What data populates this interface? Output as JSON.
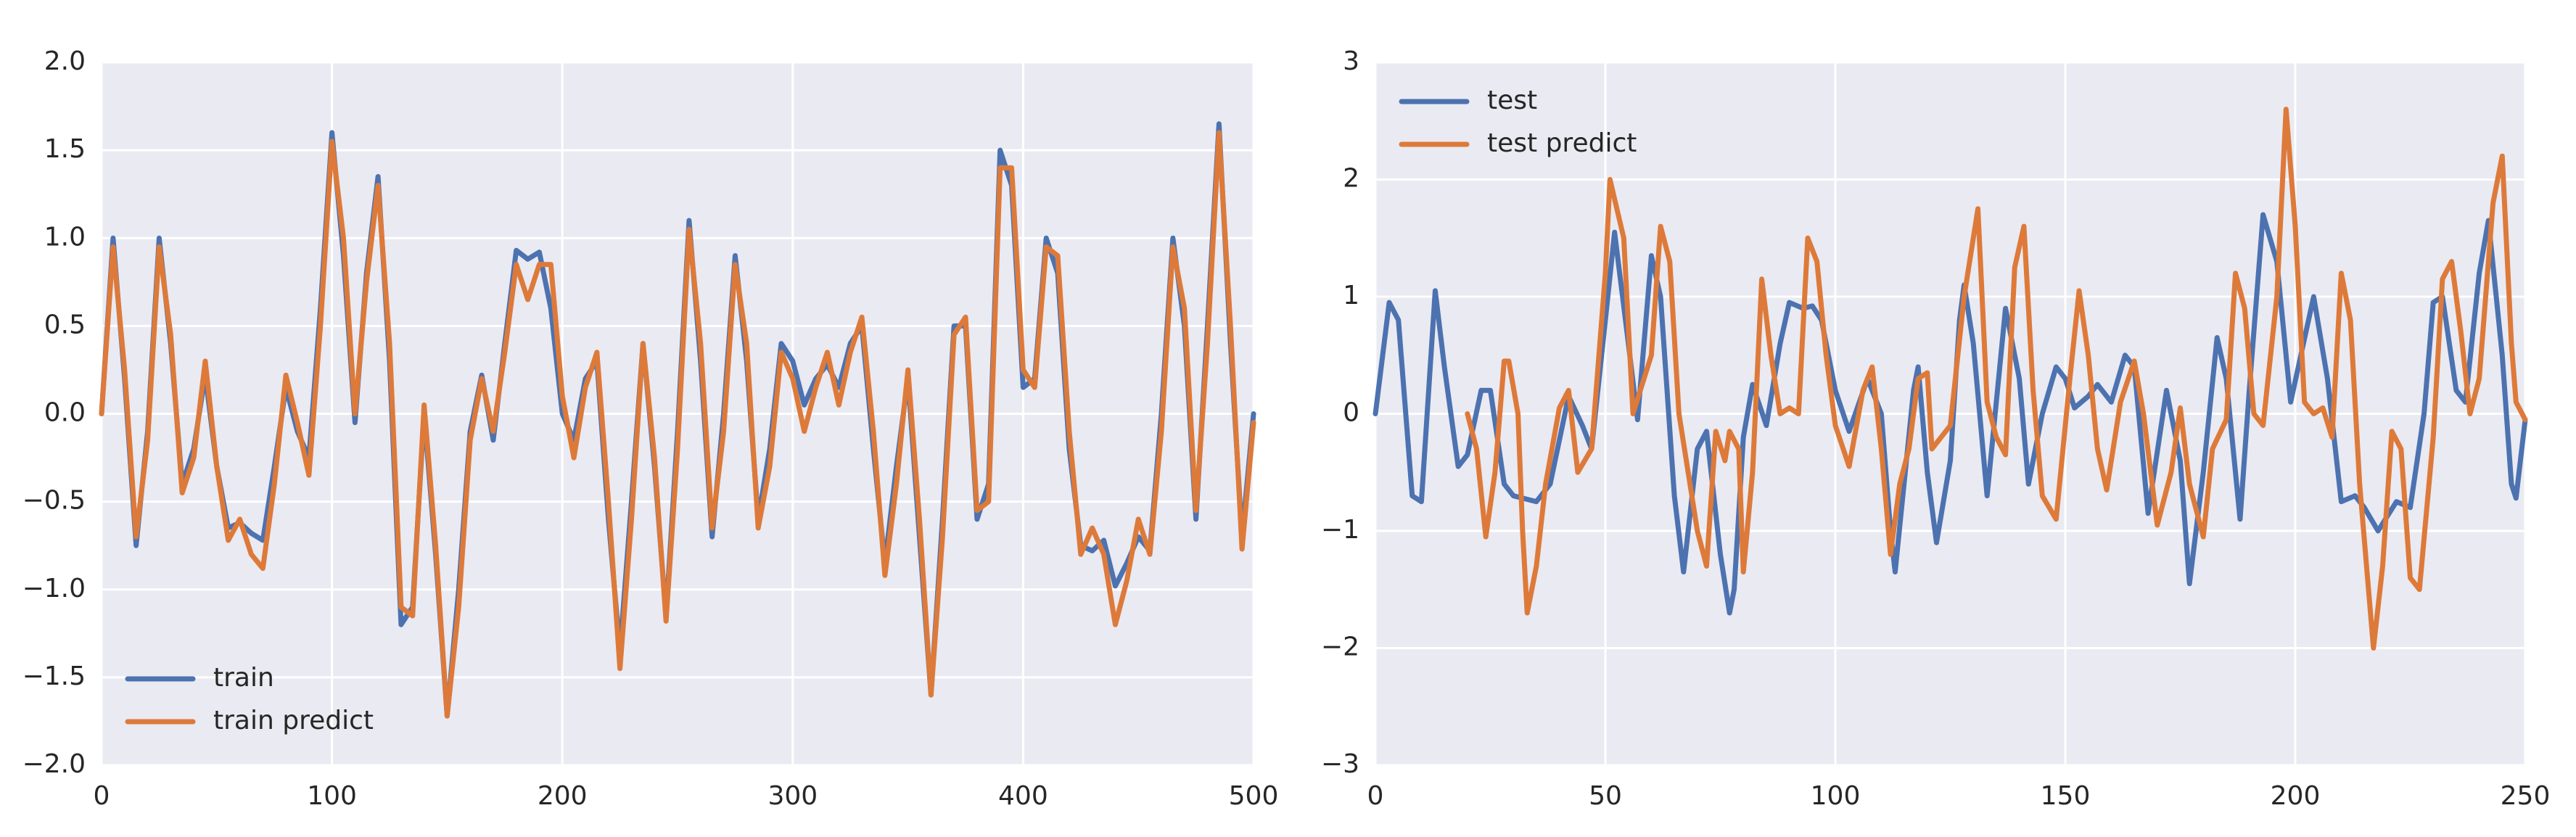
{
  "chart_data": [
    {
      "type": "line",
      "grid": true,
      "legend": "lower left",
      "xlim": [
        0,
        500
      ],
      "ylim": [
        -2,
        2
      ],
      "xticks": [
        0,
        100,
        200,
        300,
        400,
        500
      ],
      "yticks": [
        {
          "value": -2,
          "label": "−2.0"
        },
        {
          "value": -1.5,
          "label": "−1.5"
        },
        {
          "value": -1,
          "label": "−1.0"
        },
        {
          "value": -0.5,
          "label": "−0.5"
        },
        {
          "value": 0,
          "label": "0.0"
        },
        0.5,
        {
          "value": 1,
          "label": "1.0"
        },
        1.5,
        {
          "value": 2,
          "label": "2.0"
        }
      ],
      "series": [
        {
          "name": "train",
          "color": "#4c72b0",
          "x": [
            0,
            5,
            10,
            15,
            20,
            25,
            30,
            35,
            40,
            45,
            50,
            55,
            60,
            65,
            70,
            75,
            80,
            85,
            90,
            95,
            100,
            105,
            110,
            115,
            120,
            125,
            130,
            135,
            140,
            145,
            150,
            155,
            160,
            165,
            170,
            175,
            180,
            185,
            190,
            195,
            200,
            205,
            210,
            215,
            220,
            225,
            230,
            235,
            240,
            245,
            250,
            255,
            260,
            265,
            270,
            275,
            280,
            285,
            290,
            295,
            300,
            305,
            310,
            315,
            320,
            325,
            330,
            335,
            340,
            345,
            350,
            355,
            360,
            365,
            370,
            375,
            380,
            385,
            390,
            395,
            400,
            405,
            410,
            415,
            420,
            425,
            430,
            435,
            440,
            445,
            450,
            455,
            460,
            465,
            470,
            475,
            480,
            485,
            490,
            495,
            500
          ],
          "values": [
            0,
            1.0,
            0.2,
            -0.75,
            -0.1,
            1.0,
            0.4,
            -0.4,
            -0.2,
            0.22,
            -0.3,
            -0.65,
            -0.62,
            -0.68,
            -0.72,
            -0.3,
            0.15,
            -0.1,
            -0.25,
            0.6,
            1.6,
            0.9,
            -0.05,
            0.8,
            1.35,
            0.3,
            -1.2,
            -1.1,
            0.0,
            -0.8,
            -1.72,
            -1.0,
            -0.1,
            0.22,
            -0.15,
            0.4,
            0.93,
            0.88,
            0.92,
            0.6,
            0.0,
            -0.15,
            0.2,
            0.3,
            -0.6,
            -1.35,
            -0.5,
            0.4,
            -0.3,
            -1.15,
            -0.1,
            1.1,
            0.3,
            -0.7,
            0.0,
            0.9,
            0.3,
            -0.6,
            -0.2,
            0.4,
            0.3,
            0.05,
            0.2,
            0.28,
            0.15,
            0.4,
            0.5,
            -0.2,
            -0.85,
            -0.3,
            0.2,
            -0.7,
            -1.6,
            -0.6,
            0.5,
            0.5,
            -0.6,
            -0.4,
            1.5,
            1.3,
            0.15,
            0.2,
            1.0,
            0.8,
            -0.2,
            -0.75,
            -0.78,
            -0.72,
            -0.98,
            -0.85,
            -0.7,
            -0.78,
            0.0,
            1.0,
            0.5,
            -0.6,
            0.5,
            1.65,
            0.4,
            -0.7,
            0.0
          ]
        },
        {
          "name": "train predict",
          "color": "#dd7a3a",
          "x": [
            0,
            5,
            10,
            15,
            20,
            25,
            30,
            35,
            40,
            45,
            50,
            55,
            60,
            65,
            70,
            75,
            80,
            85,
            90,
            95,
            100,
            105,
            110,
            115,
            120,
            125,
            130,
            135,
            140,
            145,
            150,
            155,
            160,
            165,
            170,
            175,
            180,
            185,
            190,
            195,
            200,
            205,
            210,
            215,
            220,
            225,
            230,
            235,
            240,
            245,
            250,
            255,
            260,
            265,
            270,
            275,
            280,
            285,
            290,
            295,
            300,
            305,
            310,
            315,
            320,
            325,
            330,
            335,
            340,
            345,
            350,
            355,
            360,
            365,
            370,
            375,
            380,
            385,
            390,
            395,
            400,
            405,
            410,
            415,
            420,
            425,
            430,
            435,
            440,
            445,
            450,
            455,
            460,
            465,
            470,
            475,
            480,
            485,
            490,
            495,
            500
          ],
          "values": [
            0,
            0.95,
            0.25,
            -0.7,
            -0.15,
            0.95,
            0.45,
            -0.45,
            -0.25,
            0.3,
            -0.3,
            -0.72,
            -0.6,
            -0.8,
            -0.88,
            -0.4,
            0.22,
            -0.05,
            -0.35,
            0.5,
            1.55,
            1.0,
            0.0,
            0.75,
            1.3,
            0.4,
            -1.1,
            -1.15,
            0.05,
            -0.75,
            -1.72,
            -1.1,
            -0.15,
            0.2,
            -0.1,
            0.35,
            0.85,
            0.65,
            0.85,
            0.85,
            0.1,
            -0.25,
            0.15,
            0.35,
            -0.5,
            -1.45,
            -0.6,
            0.4,
            -0.25,
            -1.18,
            -0.2,
            1.05,
            0.4,
            -0.65,
            -0.1,
            0.85,
            0.4,
            -0.65,
            -0.3,
            0.35,
            0.2,
            -0.1,
            0.15,
            0.35,
            0.05,
            0.35,
            0.55,
            -0.1,
            -0.92,
            -0.4,
            0.25,
            -0.6,
            -1.6,
            -0.7,
            0.45,
            0.55,
            -0.55,
            -0.5,
            1.4,
            1.4,
            0.25,
            0.15,
            0.95,
            0.9,
            -0.1,
            -0.8,
            -0.65,
            -0.8,
            -1.2,
            -0.95,
            -0.6,
            -0.8,
            -0.1,
            0.95,
            0.6,
            -0.55,
            0.4,
            1.6,
            0.5,
            -0.77,
            -0.05
          ]
        }
      ]
    },
    {
      "type": "line",
      "grid": true,
      "legend": "upper left",
      "xlim": [
        0,
        250
      ],
      "ylim": [
        -3,
        3
      ],
      "xticks": [
        0,
        50,
        100,
        150,
        200,
        250
      ],
      "yticks": [
        {
          "value": -3,
          "label": "−3"
        },
        {
          "value": -2,
          "label": "−2"
        },
        {
          "value": -1,
          "label": "−1"
        },
        0,
        1,
        2,
        3
      ],
      "series": [
        {
          "name": "test",
          "color": "#4c72b0",
          "x": [
            0,
            3,
            5,
            8,
            10,
            13,
            15,
            18,
            20,
            23,
            25,
            28,
            30,
            35,
            38,
            42,
            45,
            47,
            50,
            52,
            55,
            57,
            60,
            62,
            65,
            67,
            70,
            72,
            75,
            77,
            78,
            80,
            82,
            85,
            88,
            90,
            93,
            95,
            97,
            100,
            103,
            107,
            110,
            112,
            113,
            117,
            118,
            120,
            122,
            125,
            127,
            128,
            130,
            133,
            137,
            140,
            142,
            145,
            148,
            150,
            152,
            155,
            157,
            160,
            163,
            165,
            168,
            172,
            175,
            177,
            180,
            183,
            185,
            188,
            190,
            193,
            196,
            199,
            204,
            207,
            210,
            213,
            215,
            218,
            222,
            225,
            228,
            230,
            232,
            235,
            237,
            240,
            242,
            245,
            247,
            248,
            250
          ],
          "values": [
            0,
            0.95,
            0.8,
            -0.7,
            -0.75,
            1.05,
            0.4,
            -0.45,
            -0.35,
            0.2,
            0.2,
            -0.6,
            -0.7,
            -0.75,
            -0.6,
            0.15,
            -0.1,
            -0.3,
            0.8,
            1.55,
            0.6,
            -0.05,
            1.35,
            1.0,
            -0.7,
            -1.35,
            -0.3,
            -0.15,
            -1.2,
            -1.7,
            -1.5,
            -0.2,
            0.25,
            -0.1,
            0.6,
            0.95,
            0.9,
            0.92,
            0.8,
            0.2,
            -0.15,
            0.3,
            0.0,
            -1.0,
            -1.35,
            0.2,
            0.4,
            -0.5,
            -1.1,
            -0.4,
            0.8,
            1.1,
            0.6,
            -0.7,
            0.9,
            0.3,
            -0.6,
            0.0,
            0.4,
            0.3,
            0.05,
            0.15,
            0.25,
            0.1,
            0.5,
            0.4,
            -0.85,
            0.2,
            -0.4,
            -1.45,
            -0.5,
            0.65,
            0.3,
            -0.9,
            0.2,
            1.7,
            1.3,
            0.1,
            1.0,
            0.3,
            -0.75,
            -0.7,
            -0.8,
            -1.0,
            -0.75,
            -0.8,
            0.0,
            0.95,
            1.0,
            0.2,
            0.1,
            1.2,
            1.65,
            0.5,
            -0.6,
            -0.72,
            -0.05
          ]
        },
        {
          "name": "test predict",
          "color": "#dd7a3a",
          "x": [
            20,
            22,
            24,
            26,
            28,
            29,
            31,
            32,
            33,
            35,
            37,
            40,
            42,
            44,
            47,
            50,
            51,
            54,
            56,
            60,
            62,
            64,
            66,
            70,
            72,
            74,
            76,
            77,
            79,
            80,
            82,
            84,
            86,
            88,
            90,
            92,
            94,
            96,
            98,
            100,
            103,
            106,
            108,
            110,
            112,
            114,
            116,
            118,
            120,
            121,
            123,
            125,
            128,
            131,
            133,
            135,
            137,
            139,
            141,
            143,
            145,
            148,
            151,
            153,
            155,
            157,
            159,
            162,
            165,
            167,
            170,
            173,
            175,
            177,
            180,
            182,
            185,
            187,
            189,
            191,
            193,
            196,
            198,
            200,
            202,
            204,
            206,
            208,
            210,
            212,
            214,
            217,
            219,
            221,
            223,
            225,
            227,
            230,
            232,
            234,
            236,
            238,
            240,
            243,
            245,
            247,
            248,
            250
          ],
          "values": [
            0,
            -0.3,
            -1.05,
            -0.5,
            0.45,
            0.45,
            0.0,
            -1.0,
            -1.7,
            -1.3,
            -0.6,
            0.05,
            0.2,
            -0.5,
            -0.3,
            1.2,
            2.0,
            1.5,
            0.0,
            0.5,
            1.6,
            1.3,
            0.0,
            -1.0,
            -1.3,
            -0.15,
            -0.4,
            -0.15,
            -0.3,
            -1.35,
            -0.5,
            1.15,
            0.5,
            0.0,
            0.05,
            0.0,
            1.5,
            1.3,
            0.5,
            -0.1,
            -0.45,
            0.2,
            0.4,
            -0.3,
            -1.2,
            -0.6,
            -0.3,
            0.3,
            0.35,
            -0.3,
            -0.2,
            -0.1,
            1.0,
            1.75,
            0.1,
            -0.2,
            -0.35,
            1.25,
            1.6,
            0.2,
            -0.7,
            -0.9,
            0.3,
            1.05,
            0.5,
            -0.3,
            -0.65,
            0.1,
            0.45,
            0.0,
            -0.95,
            -0.5,
            0.05,
            -0.6,
            -1.05,
            -0.3,
            -0.05,
            1.2,
            0.9,
            0.0,
            -0.1,
            1.0,
            2.6,
            1.6,
            0.1,
            0.0,
            0.05,
            -0.2,
            1.2,
            0.8,
            -0.6,
            -2.0,
            -1.3,
            -0.15,
            -0.3,
            -1.4,
            -1.5,
            -0.2,
            1.15,
            1.3,
            0.7,
            0.0,
            0.3,
            1.8,
            2.2,
            0.6,
            0.1,
            -0.05
          ]
        }
      ]
    }
  ]
}
